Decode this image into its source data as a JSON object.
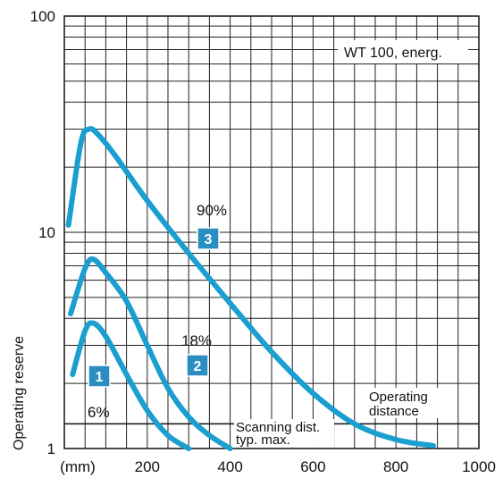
{
  "chart_data": {
    "type": "line",
    "title": "WT 100, energ.",
    "xlabel": "(mm)",
    "ylabel": "Operating reserve",
    "xlim": [
      0,
      1000
    ],
    "ylim": [
      1,
      100
    ],
    "yscale": "log",
    "grid": true,
    "x_ticks": [
      200,
      400,
      600,
      800,
      1000
    ],
    "y_ticks": [
      1,
      10,
      100
    ],
    "series": [
      {
        "id": "1",
        "name": "6%",
        "color": "#1a9fd0",
        "points": [
          [
            20,
            2.2
          ],
          [
            50,
            3.5
          ],
          [
            70,
            3.8
          ],
          [
            100,
            3.3
          ],
          [
            150,
            2.2
          ],
          [
            200,
            1.5
          ],
          [
            250,
            1.15
          ],
          [
            300,
            1.0
          ]
        ]
      },
      {
        "id": "2",
        "name": "18%",
        "color": "#1a9fd0",
        "points": [
          [
            15,
            4.2
          ],
          [
            50,
            6.8
          ],
          [
            70,
            7.5
          ],
          [
            100,
            6.5
          ],
          [
            150,
            4.8
          ],
          [
            200,
            3.0
          ],
          [
            250,
            1.9
          ],
          [
            300,
            1.4
          ],
          [
            350,
            1.15
          ],
          [
            400,
            1.0
          ]
        ]
      },
      {
        "id": "3",
        "name": "90%",
        "color": "#1a9fd0",
        "points": [
          [
            10,
            10.8
          ],
          [
            40,
            26.0
          ],
          [
            60,
            30.0
          ],
          [
            80,
            28.5
          ],
          [
            120,
            23.0
          ],
          [
            200,
            14.0
          ],
          [
            300,
            8.0
          ],
          [
            400,
            4.7
          ],
          [
            500,
            2.8
          ],
          [
            600,
            1.8
          ],
          [
            700,
            1.3
          ],
          [
            800,
            1.1
          ],
          [
            890,
            1.03
          ]
        ]
      }
    ],
    "annotations": {
      "scanning_line_y": 1.3,
      "scanning_line_label_1": "Scanning dist.",
      "scanning_line_label_2": "typ. max.",
      "operating_label_1": "Operating",
      "operating_label_2": "distance"
    }
  }
}
